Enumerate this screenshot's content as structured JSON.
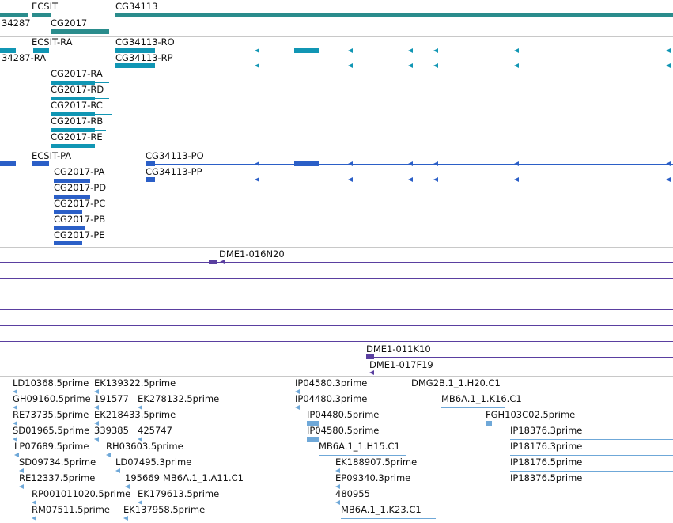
{
  "colors": {
    "gene": "#2a8c8c",
    "transcript_cyan": "#1196b4",
    "transcript_blue": "#2b5fc7",
    "clone": "#5a3fa0",
    "est": "#6fa8d8",
    "separator": "#c8c8c8"
  },
  "gene_track": {
    "labels": [
      "ECSIT",
      "CG34113",
      "34287",
      "CG2017"
    ]
  },
  "transcript_track_1": {
    "labels": [
      "ECSIT-RA",
      "CG34113-RO",
      "34287-RA",
      "CG34113-RP",
      "CG2017-RA",
      "CG2017-RD",
      "CG2017-RC",
      "CG2017-RB",
      "CG2017-RE"
    ]
  },
  "transcript_track_2": {
    "labels": [
      "ECSIT-PA",
      "CG34113-PO",
      "CG34113-PP",
      "CG2017-PA",
      "CG2017-PD",
      "CG2017-PC",
      "CG2017-PB",
      "CG2017-PE"
    ]
  },
  "clone_track": {
    "labels": [
      "DME1-016N20",
      "DME1-011K10",
      "DME1-017F19"
    ]
  },
  "est_track": {
    "labels": [
      "LD10368.5prime",
      "EK139322.5prime",
      "IP04580.3prime",
      "DMG2B.1_1.H20.C1",
      "GH09160.5prime",
      "191577",
      "EK278132.5prime",
      "IP04480.3prime",
      "MB6A.1_1.K16.C1",
      "RE73735.5prime",
      "EK218433.5prime",
      "IP04480.5prime",
      "FGH103C02.5prime",
      "SD01965.5prime",
      "339385",
      "425747",
      "IP04580.5prime",
      "IP18376.3prime",
      "LP07689.5prime",
      "RH03603.5prime",
      "MB6A.1_1.H15.C1",
      "IP18176.3prime",
      "SD09734.5prime",
      "LD07495.3prime",
      "EK188907.5prime",
      "IP18176.5prime",
      "RE12337.5prime",
      "195669",
      "MB6A.1_1.A11.C1",
      "EP09340.3prime",
      "IP18376.5prime",
      "RP001011020.5prime",
      "EK179613.5prime",
      "480955",
      "RM07511.5prime",
      "EK137958.5prime",
      "MB6A.1_1.K23.C1"
    ]
  }
}
